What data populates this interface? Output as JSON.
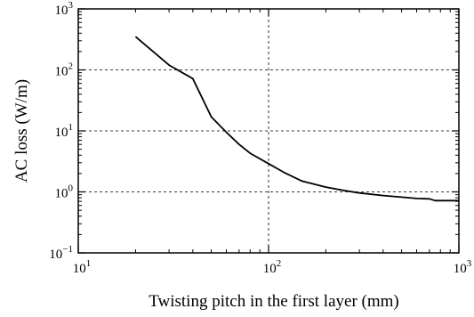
{
  "chart_data": {
    "type": "line",
    "title": "",
    "xlabel": "Twisting pitch in the first layer (mm)",
    "ylabel": "AC loss  (W/m)",
    "xscale": "log",
    "yscale": "log",
    "xlim": [
      10,
      1000
    ],
    "ylim": [
      0.1,
      1000
    ],
    "grid": "dashed at major decades",
    "legend": "none",
    "x_ticks": [
      {
        "base": "10",
        "exp": "1"
      },
      {
        "base": "10",
        "exp": "2"
      },
      {
        "base": "10",
        "exp": "3"
      }
    ],
    "y_ticks": [
      {
        "base": "10",
        "exp": "−1"
      },
      {
        "base": "10",
        "exp": "0"
      },
      {
        "base": "10",
        "exp": "1"
      },
      {
        "base": "10",
        "exp": "2"
      },
      {
        "base": "10",
        "exp": "3"
      }
    ],
    "series": [
      {
        "color": "#000000",
        "x": [
          20,
          30,
          40,
          50,
          60,
          70,
          80,
          100,
          120,
          150,
          200,
          250,
          300,
          400,
          500,
          600,
          700,
          750,
          800,
          1000
        ],
        "y": [
          350,
          120,
          72,
          17,
          9.5,
          6,
          4.3,
          2.9,
          2.1,
          1.5,
          1.2,
          1.05,
          0.96,
          0.87,
          0.82,
          0.78,
          0.77,
          0.72,
          0.72,
          0.72
        ]
      }
    ]
  }
}
